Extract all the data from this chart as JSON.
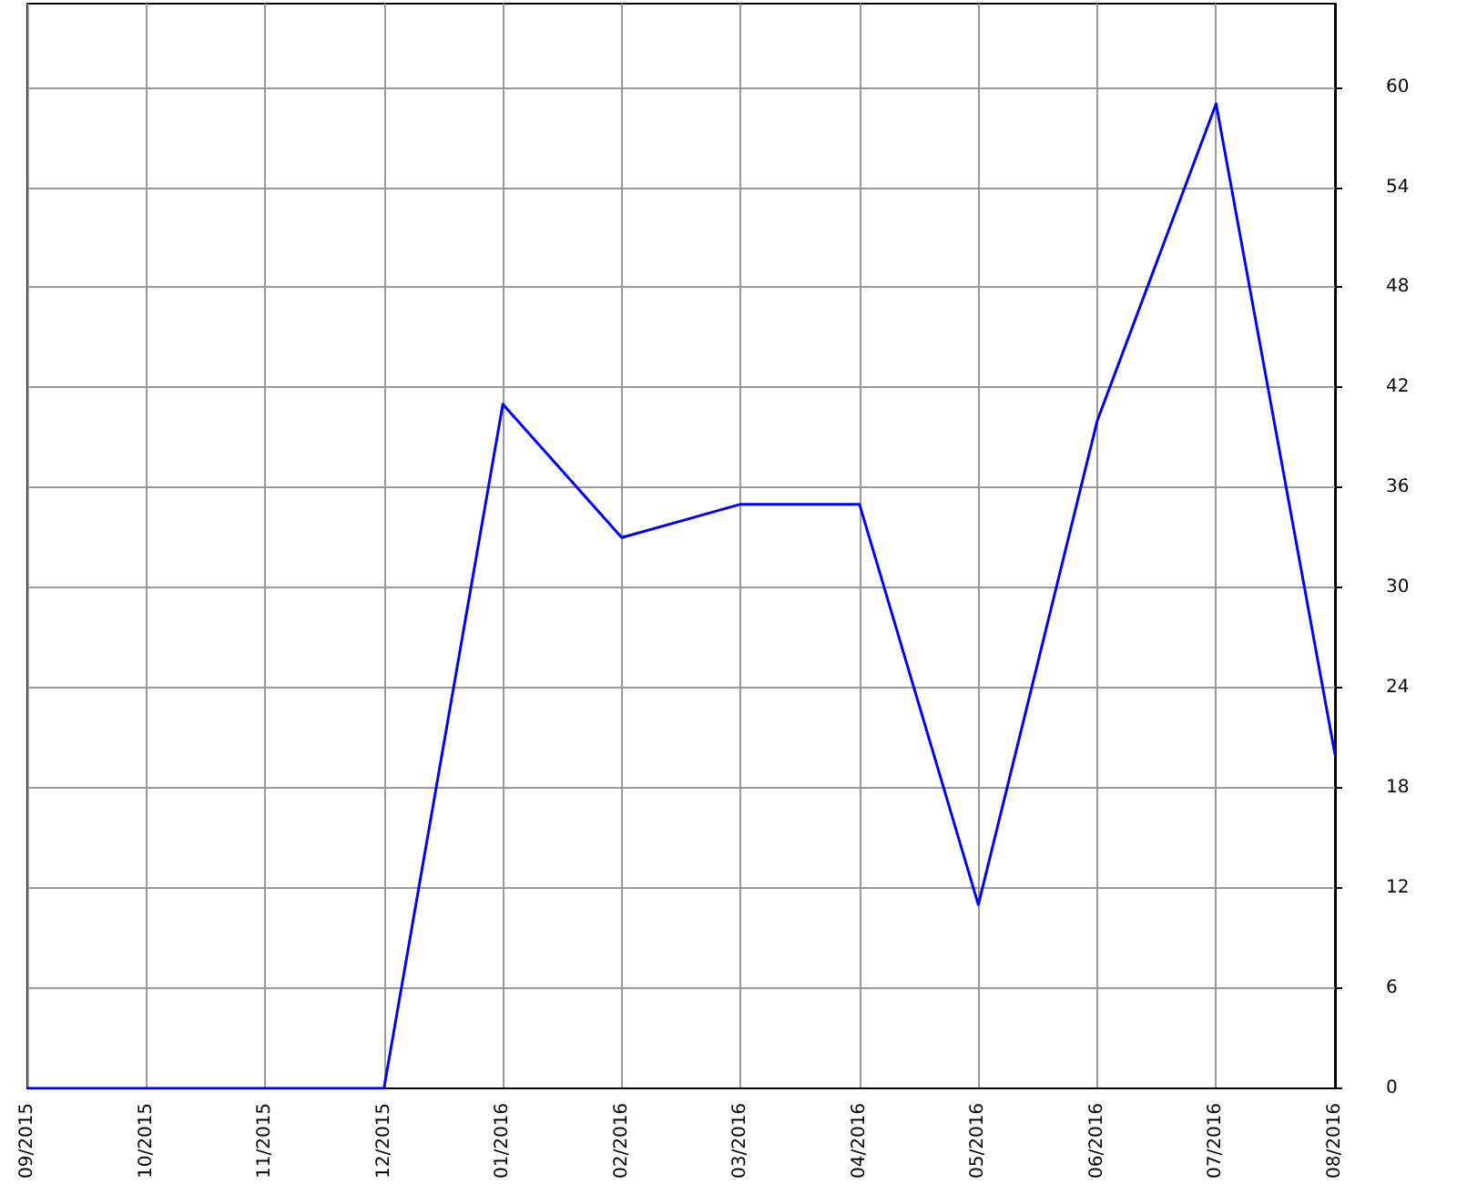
{
  "chart_data": {
    "type": "line",
    "categories": [
      "09/2015",
      "10/2015",
      "11/2015",
      "12/2015",
      "01/2016",
      "02/2016",
      "03/2016",
      "04/2016",
      "05/2016",
      "06/2016",
      "07/2016",
      "08/2016"
    ],
    "series": [
      {
        "color": "#0000ff",
        "values": [
          0,
          0,
          0,
          0,
          41,
          33,
          35,
          35,
          11,
          40,
          59,
          20
        ]
      }
    ],
    "ylim": [
      0,
      65
    ],
    "yticks": [
      0,
      6,
      12,
      18,
      24,
      30,
      36,
      42,
      48,
      54,
      60
    ],
    "grid": true,
    "marker": "none",
    "line_style": "solid"
  }
}
